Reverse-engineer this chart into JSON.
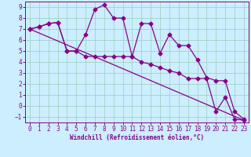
{
  "xlabel": "Windchill (Refroidissement éolien,°C)",
  "bg_color": "#cceeff",
  "line_color": "#880088",
  "grid_color": "#99ccbb",
  "xlim": [
    -0.5,
    23.5
  ],
  "ylim": [
    -1.5,
    9.5
  ],
  "xticks": [
    0,
    1,
    2,
    3,
    4,
    5,
    6,
    7,
    8,
    9,
    10,
    11,
    12,
    13,
    14,
    15,
    16,
    17,
    18,
    19,
    20,
    21,
    22,
    23
  ],
  "yticks": [
    -1,
    0,
    1,
    2,
    3,
    4,
    5,
    6,
    7,
    8,
    9
  ],
  "line1_x": [
    0,
    1,
    2,
    3,
    4,
    5,
    6,
    7,
    8,
    9,
    10,
    11,
    12,
    13,
    14,
    15,
    16,
    17,
    18,
    19,
    20,
    21,
    22,
    23
  ],
  "line1_y": [
    7.0,
    7.2,
    7.5,
    7.6,
    5.0,
    5.0,
    6.5,
    8.8,
    9.2,
    8.0,
    8.0,
    4.5,
    7.5,
    7.5,
    4.8,
    6.5,
    5.5,
    5.5,
    4.2,
    2.6,
    2.3,
    2.3,
    -0.5,
    -1.2
  ],
  "line2_x": [
    0,
    1,
    2,
    3,
    4,
    5,
    6,
    7,
    8,
    9,
    10,
    11,
    12,
    13,
    14,
    15,
    16,
    17,
    18,
    19,
    20,
    21,
    22,
    23
  ],
  "line2_y": [
    7.0,
    7.2,
    7.5,
    7.6,
    5.0,
    5.0,
    4.5,
    4.5,
    4.5,
    4.5,
    4.5,
    4.5,
    4.0,
    3.8,
    3.5,
    3.2,
    3.0,
    2.5,
    2.5,
    2.5,
    -0.5,
    0.8,
    -1.2,
    -1.3
  ],
  "line3_x": [
    0,
    23
  ],
  "line3_y": [
    7.0,
    -1.3
  ],
  "marker": "D",
  "markersize": 2.5,
  "linewidth": 0.9,
  "tick_fontsize": 5.5,
  "xlabel_fontsize": 5.5
}
